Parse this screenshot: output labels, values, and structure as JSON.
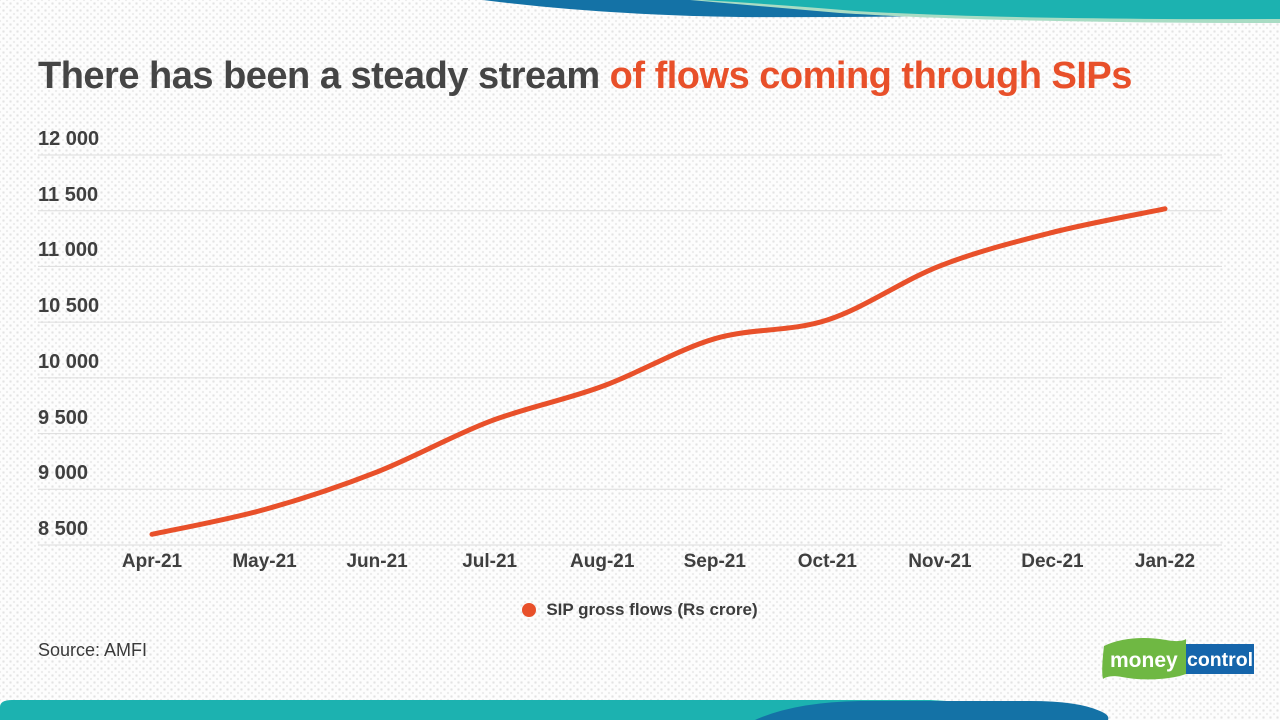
{
  "title": {
    "plain": "There has been a steady stream",
    "highlight": " of flows coming through SIPs"
  },
  "chart_data": {
    "type": "line",
    "title": "There has been a steady stream of flows coming through SIPs",
    "x": [
      "Apr-21",
      "May-21",
      "Jun-21",
      "Jul-21",
      "Aug-21",
      "Sep-21",
      "Oct-21",
      "Nov-21",
      "Dec-21",
      "Jan-22"
    ],
    "series": [
      {
        "name": "SIP gross flows (Rs crore)",
        "color": "#e8502a",
        "values": [
          8596,
          8819,
          9156,
          9609,
          9923,
          10351,
          10519,
          11005,
          11305,
          11517
        ]
      }
    ],
    "xlabel": "",
    "ylabel": "",
    "ylim": [
      8500,
      12000
    ],
    "ytick_step": 500,
    "ytick_labels": [
      "8 500",
      "9 000",
      "9 500",
      "10 000",
      "10 500",
      "11 000",
      "11 500",
      "12 000"
    ],
    "grid": true,
    "gridline_color": "#dcdcdc",
    "legend_position": "bottom"
  },
  "legend": {
    "label": "SIP gross flows (Rs crore)",
    "marker_color": "#e8502a"
  },
  "source": {
    "label": "Source: AMFI"
  },
  "logo": {
    "part1": "money",
    "part2": "control",
    "green": "#6fb843",
    "blue": "#1565ab"
  },
  "colors": {
    "accent_orange": "#e8502a",
    "wave_teal": "#1cb2b0",
    "wave_blue": "#1472a6",
    "wave_mint": "#a9dcc4",
    "title_gray": "#454545"
  }
}
